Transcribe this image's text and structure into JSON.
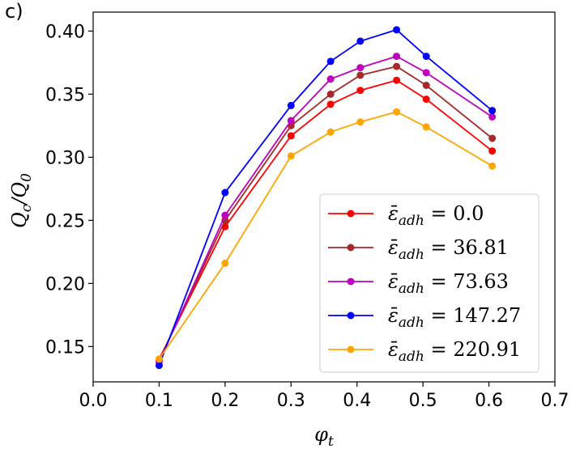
{
  "chart_data": {
    "type": "line",
    "panel_label": "c)",
    "title": "",
    "xlabel": "φ",
    "xlabel_sub": "t",
    "ylabel": "Q",
    "ylabel_sub": "c",
    "ylabel_slash": "/Q",
    "ylabel_sub2": "0",
    "xlim": [
      0.0,
      0.7
    ],
    "ylim": [
      0.122,
      0.415
    ],
    "xticks": [
      "0.0",
      "0.1",
      "0.2",
      "0.3",
      "0.4",
      "0.5",
      "0.6",
      "0.7"
    ],
    "yticks": [
      "0.15",
      "0.20",
      "0.25",
      "0.30",
      "0.35",
      "0.40"
    ],
    "x": [
      0.1,
      0.2,
      0.3,
      0.36,
      0.405,
      0.46,
      0.505,
      0.605
    ],
    "legend_position": "lower-right",
    "series": [
      {
        "name": "0.0",
        "legend_prefix": "ε̄",
        "legend_sub": "adh",
        "legend_eq": " = ",
        "color": "#ff0000",
        "values": [
          0.14,
          0.245,
          0.317,
          0.342,
          0.353,
          0.361,
          0.346,
          0.305
        ]
      },
      {
        "name": "36.81",
        "legend_prefix": "ε̄",
        "legend_sub": "adh",
        "legend_eq": " = ",
        "color": "#a52a2a",
        "values": [
          0.139,
          0.25,
          0.325,
          0.35,
          0.365,
          0.372,
          0.357,
          0.315
        ]
      },
      {
        "name": "73.63",
        "legend_prefix": "ε̄",
        "legend_sub": "adh",
        "legend_eq": " = ",
        "color": "#bf00bf",
        "values": [
          0.138,
          0.254,
          0.329,
          0.362,
          0.371,
          0.38,
          0.367,
          0.332
        ]
      },
      {
        "name": "147.27",
        "legend_prefix": "ε̄",
        "legend_sub": "adh",
        "legend_eq": " = ",
        "color": "#0000ff",
        "values": [
          0.135,
          0.272,
          0.341,
          0.376,
          0.392,
          0.401,
          0.38,
          0.337
        ]
      },
      {
        "name": "220.91",
        "legend_prefix": "ε̄",
        "legend_sub": "adh",
        "legend_eq": " = ",
        "color": "#ffa500",
        "values": [
          0.14,
          0.216,
          0.301,
          0.32,
          0.328,
          0.336,
          0.324,
          0.293
        ]
      }
    ]
  }
}
